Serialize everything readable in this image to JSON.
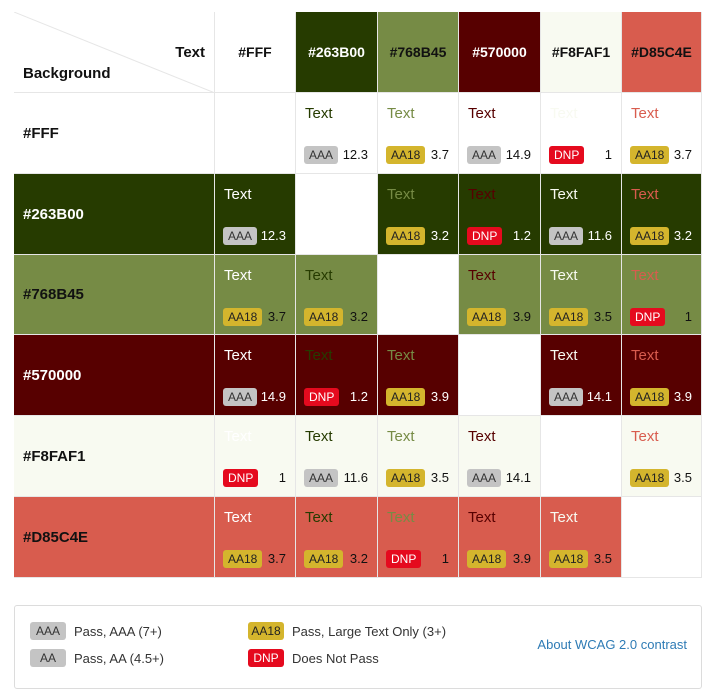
{
  "corner": {
    "text_label": "Text",
    "background_label": "Background"
  },
  "sample_text": "Text",
  "colors": [
    {
      "label": "#FFF",
      "hex": "#FFFFFF"
    },
    {
      "label": "#263B00",
      "hex": "#263B00"
    },
    {
      "label": "#768B45",
      "hex": "#768B45"
    },
    {
      "label": "#570000",
      "hex": "#570000"
    },
    {
      "label": "#F8FAF1",
      "hex": "#F8FAF1"
    },
    {
      "label": "#D85C4E",
      "hex": "#D85C4E"
    }
  ],
  "header_text_colors": [
    "#111111",
    "#FFFFFF",
    "#111111",
    "#FFFFFF",
    "#111111",
    "#111111"
  ],
  "rows": [
    {
      "cells": [
        null,
        {
          "badge": "AAA",
          "ratio": "12.3"
        },
        {
          "badge": "AA18",
          "ratio": "3.7"
        },
        {
          "badge": "AAA",
          "ratio": "14.9"
        },
        {
          "badge": "DNP",
          "ratio": "1"
        },
        {
          "badge": "AA18",
          "ratio": "3.7"
        }
      ]
    },
    {
      "cells": [
        {
          "badge": "AAA",
          "ratio": "12.3"
        },
        null,
        {
          "badge": "AA18",
          "ratio": "3.2"
        },
        {
          "badge": "DNP",
          "ratio": "1.2"
        },
        {
          "badge": "AAA",
          "ratio": "11.6"
        },
        {
          "badge": "AA18",
          "ratio": "3.2"
        }
      ]
    },
    {
      "cells": [
        {
          "badge": "AA18",
          "ratio": "3.7"
        },
        {
          "badge": "AA18",
          "ratio": "3.2"
        },
        null,
        {
          "badge": "AA18",
          "ratio": "3.9"
        },
        {
          "badge": "AA18",
          "ratio": "3.5"
        },
        {
          "badge": "DNP",
          "ratio": "1"
        }
      ]
    },
    {
      "cells": [
        {
          "badge": "AAA",
          "ratio": "14.9"
        },
        {
          "badge": "DNP",
          "ratio": "1.2"
        },
        {
          "badge": "AA18",
          "ratio": "3.9"
        },
        null,
        {
          "badge": "AAA",
          "ratio": "14.1"
        },
        {
          "badge": "AA18",
          "ratio": "3.9"
        }
      ]
    },
    {
      "cells": [
        {
          "badge": "DNP",
          "ratio": "1"
        },
        {
          "badge": "AAA",
          "ratio": "11.6"
        },
        {
          "badge": "AA18",
          "ratio": "3.5"
        },
        {
          "badge": "AAA",
          "ratio": "14.1"
        },
        null,
        {
          "badge": "AA18",
          "ratio": "3.5"
        }
      ]
    },
    {
      "cells": [
        {
          "badge": "AA18",
          "ratio": "3.7"
        },
        {
          "badge": "AA18",
          "ratio": "3.2"
        },
        {
          "badge": "DNP",
          "ratio": "1"
        },
        {
          "badge": "AA18",
          "ratio": "3.9"
        },
        {
          "badge": "AA18",
          "ratio": "3.5"
        },
        null
      ]
    }
  ],
  "legend": {
    "aaa": {
      "badge": "AAA",
      "text": "Pass, AAA (7+)"
    },
    "aa": {
      "badge": "AA",
      "text": "Pass, AA (4.5+)"
    },
    "aa18": {
      "badge": "AA18",
      "text": "Pass, Large Text Only (3+)"
    },
    "dnp": {
      "badge": "DNP",
      "text": "Does Not Pass"
    },
    "link": "About WCAG 2.0 contrast"
  }
}
